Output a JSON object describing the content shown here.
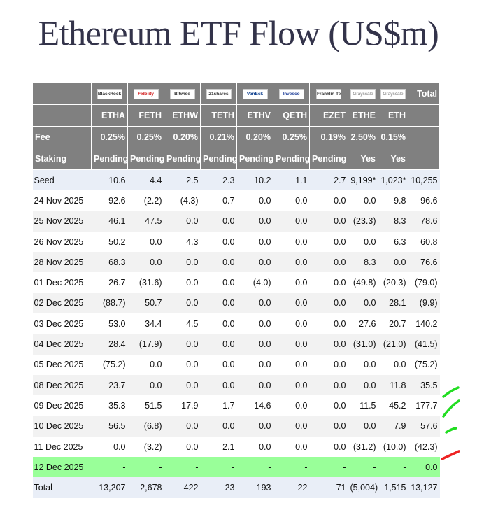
{
  "title": "Ethereum ETF Flow (US$m)",
  "chart_data": {
    "type": "table",
    "issuer_logos": [
      "BlackRock",
      "Fidelity",
      "Bitwise",
      "21shares",
      "VanEck",
      "Invesco",
      "Franklin Templeton",
      "Grayscale",
      "Grayscale"
    ],
    "total_header": "Total",
    "tickers": [
      "ETHA",
      "FETH",
      "ETHW",
      "TETH",
      "ETHV",
      "QETH",
      "EZET",
      "ETHE",
      "ETH"
    ],
    "fee_label": "Fee",
    "fees": [
      "0.25%",
      "0.25%",
      "0.20%",
      "0.21%",
      "0.20%",
      "0.25%",
      "0.19%",
      "2.50%",
      "0.15%"
    ],
    "staking_label": "Staking",
    "staking": [
      "Pending",
      "Pending",
      "Pending",
      "Pending",
      "Pending",
      "Pending",
      "Pending",
      "Yes",
      "Yes"
    ],
    "rows": [
      {
        "label": "Seed",
        "values": [
          "10.6",
          "4.4",
          "2.5",
          "2.3",
          "10.2",
          "1.1",
          "2.7",
          "9,199*",
          "1,023*",
          "10,255"
        ]
      },
      {
        "label": "24 Nov 2025",
        "values": [
          "92.6",
          "(2.2)",
          "(4.3)",
          "0.7",
          "0.0",
          "0.0",
          "0.0",
          "0.0",
          "9.8",
          "96.6"
        ]
      },
      {
        "label": "25 Nov 2025",
        "values": [
          "46.1",
          "47.5",
          "0.0",
          "0.0",
          "0.0",
          "0.0",
          "0.0",
          "(23.3)",
          "8.3",
          "78.6"
        ]
      },
      {
        "label": "26 Nov 2025",
        "values": [
          "50.2",
          "0.0",
          "4.3",
          "0.0",
          "0.0",
          "0.0",
          "0.0",
          "0.0",
          "6.3",
          "60.8"
        ]
      },
      {
        "label": "28 Nov 2025",
        "values": [
          "68.3",
          "0.0",
          "0.0",
          "0.0",
          "0.0",
          "0.0",
          "0.0",
          "8.3",
          "0.0",
          "76.6"
        ]
      },
      {
        "label": "01 Dec 2025",
        "values": [
          "26.7",
          "(31.6)",
          "0.0",
          "0.0",
          "(4.0)",
          "0.0",
          "0.0",
          "(49.8)",
          "(20.3)",
          "(79.0)"
        ]
      },
      {
        "label": "02 Dec 2025",
        "values": [
          "(88.7)",
          "50.7",
          "0.0",
          "0.0",
          "0.0",
          "0.0",
          "0.0",
          "0.0",
          "28.1",
          "(9.9)"
        ]
      },
      {
        "label": "03 Dec 2025",
        "values": [
          "53.0",
          "34.4",
          "4.5",
          "0.0",
          "0.0",
          "0.0",
          "0.0",
          "27.6",
          "20.7",
          "140.2"
        ]
      },
      {
        "label": "04 Dec 2025",
        "values": [
          "28.4",
          "(17.9)",
          "0.0",
          "0.0",
          "0.0",
          "0.0",
          "0.0",
          "(31.0)",
          "(21.0)",
          "(41.5)"
        ]
      },
      {
        "label": "05 Dec 2025",
        "values": [
          "(75.2)",
          "0.0",
          "0.0",
          "0.0",
          "0.0",
          "0.0",
          "0.0",
          "0.0",
          "0.0",
          "(75.2)"
        ]
      },
      {
        "label": "08 Dec 2025",
        "values": [
          "23.7",
          "0.0",
          "0.0",
          "0.0",
          "0.0",
          "0.0",
          "0.0",
          "0.0",
          "11.8",
          "35.5"
        ]
      },
      {
        "label": "09 Dec 2025",
        "values": [
          "35.3",
          "51.5",
          "17.9",
          "1.7",
          "14.6",
          "0.0",
          "0.0",
          "11.5",
          "45.2",
          "177.7"
        ]
      },
      {
        "label": "10 Dec 2025",
        "values": [
          "56.5",
          "(6.8)",
          "0.0",
          "0.0",
          "0.0",
          "0.0",
          "0.0",
          "0.0",
          "7.9",
          "57.6"
        ]
      },
      {
        "label": "11 Dec 2025",
        "values": [
          "0.0",
          "(3.2)",
          "0.0",
          "2.1",
          "0.0",
          "0.0",
          "0.0",
          "(31.2)",
          "(10.0)",
          "(42.3)"
        ]
      },
      {
        "label": "12 Dec 2025",
        "values": [
          "-",
          "-",
          "-",
          "-",
          "-",
          "-",
          "-",
          "-",
          "-",
          "0.0"
        ]
      },
      {
        "label": "Total",
        "values": [
          "13,207",
          "2,678",
          "422",
          "23",
          "193",
          "22",
          "71",
          "(5,004)",
          "1,515",
          "13,127"
        ]
      }
    ],
    "negative_color": "#ff0000",
    "highlight_row_color": "#99ff99",
    "header_color": "#808080",
    "annotations": [
      {
        "row": "08 Dec 2025",
        "mark": "green-stroke",
        "color": "#22dd22"
      },
      {
        "row": "09 Dec 2025",
        "mark": "green-stroke",
        "color": "#22dd22"
      },
      {
        "row": "10 Dec 2025",
        "mark": "green-stroke",
        "color": "#22dd22"
      },
      {
        "row": "11 Dec 2025",
        "mark": "red-stroke",
        "color": "#ee2222"
      }
    ]
  }
}
